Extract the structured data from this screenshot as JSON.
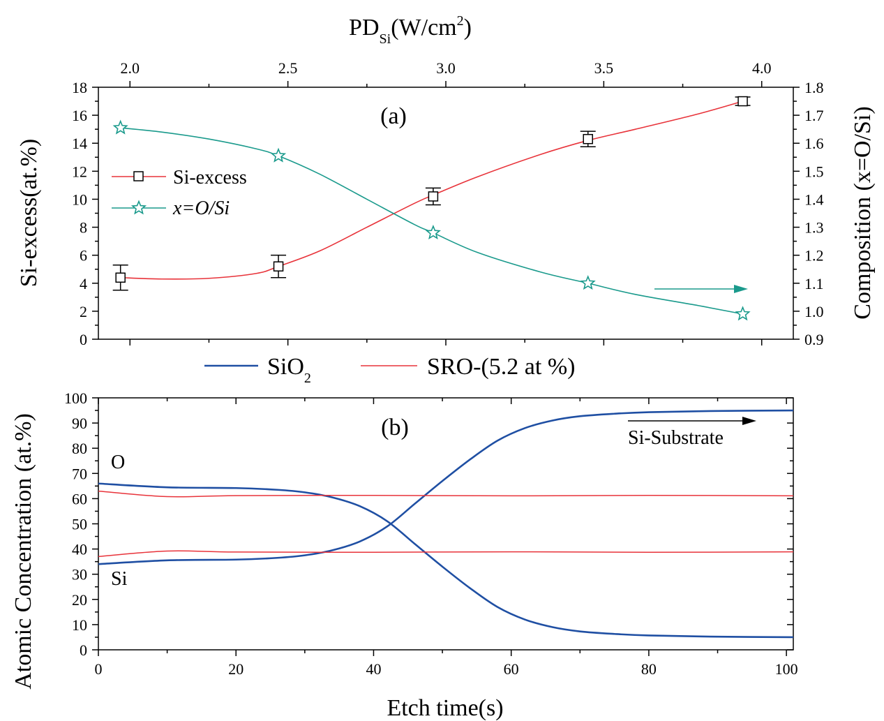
{
  "chart_data": [
    {
      "type": "scatter",
      "panel_label": "(a)",
      "x_top_label_main": "PD",
      "x_top_label_sub": "Si",
      "x_top_label_unit_pre": "(W/cm",
      "x_top_label_unit_sup": "2",
      "x_top_label_unit_post": ")",
      "x_ticks": [
        "2.0",
        "2.5",
        "3.0",
        "3.5",
        "4.0"
      ],
      "xlim": [
        1.9,
        4.1
      ],
      "y_left_label": "Si-excess(at.%)",
      "y_left_ticks": [
        "0",
        "2",
        "4",
        "6",
        "8",
        "10",
        "12",
        "14",
        "16",
        "18"
      ],
      "ylim_left": [
        0,
        18
      ],
      "y_right_label": "Composition (x=O/Si)",
      "y_right_ticks": [
        "0.9",
        "1.0",
        "1.1",
        "1.2",
        "1.3",
        "1.4",
        "1.5",
        "1.6",
        "1.7",
        "1.8"
      ],
      "ylim_right": [
        0.9,
        1.8
      ],
      "legend_position": "left",
      "series": [
        {
          "name": "Si-excess",
          "axis": "left",
          "marker": "square",
          "color": "#e8333a",
          "x": [
            1.97,
            2.47,
            2.96,
            3.45,
            3.94
          ],
          "y": [
            4.4,
            5.2,
            10.2,
            14.3,
            17.0
          ],
          "yerr": [
            0.9,
            0.8,
            0.6,
            0.55,
            0.3
          ],
          "curve_x": [
            1.97,
            2.1,
            2.25,
            2.4,
            2.47,
            2.6,
            2.75,
            2.9,
            2.96,
            3.1,
            3.3,
            3.45,
            3.6,
            3.8,
            3.94
          ],
          "curve_y": [
            4.4,
            4.3,
            4.35,
            4.7,
            5.2,
            6.3,
            8.0,
            9.7,
            10.3,
            11.6,
            13.2,
            14.2,
            15.0,
            16.1,
            17.0
          ]
        },
        {
          "name": "x=O/Si",
          "axis": "right",
          "marker": "star",
          "color": "#1a9a8c",
          "x": [
            1.97,
            2.47,
            2.96,
            3.45,
            3.94
          ],
          "y": [
            1.655,
            1.555,
            1.28,
            1.1,
            0.99
          ],
          "curve_x": [
            1.97,
            2.1,
            2.25,
            2.4,
            2.47,
            2.6,
            2.75,
            2.9,
            2.96,
            3.1,
            3.3,
            3.45,
            3.6,
            3.8,
            3.94
          ],
          "curve_y": [
            1.655,
            1.64,
            1.615,
            1.58,
            1.555,
            1.49,
            1.4,
            1.31,
            1.28,
            1.21,
            1.14,
            1.1,
            1.06,
            1.02,
            0.99
          ]
        }
      ],
      "arrow_color": "#1a9a8c"
    },
    {
      "type": "line",
      "panel_label": "(b)",
      "xlabel": "Etch time(s)",
      "x_ticks": [
        "0",
        "20",
        "40",
        "60",
        "80",
        "100"
      ],
      "xlim": [
        0,
        101
      ],
      "ylabel": "Atomic Concentration (at.%)",
      "y_ticks": [
        "0",
        "10",
        "20",
        "30",
        "40",
        "50",
        "60",
        "70",
        "80",
        "90",
        "100"
      ],
      "ylim": [
        0,
        100
      ],
      "legend_position": "top",
      "legend": [
        {
          "name_main": "SiO",
          "name_sub": "2",
          "color": "#1f4fa3"
        },
        {
          "name_main": "SRO-(5.2 at %)",
          "name_sub": "",
          "color": "#e8333a"
        }
      ],
      "series": [
        {
          "group": "SiO2",
          "element": "O",
          "color": "#1f4fa3",
          "x": [
            0,
            10,
            20,
            26,
            30,
            34,
            38,
            42,
            46,
            50,
            54,
            58,
            62,
            66,
            70,
            75,
            80,
            90,
            101
          ],
          "y": [
            66,
            64.5,
            64.2,
            63.5,
            62.5,
            60.5,
            57,
            51,
            42,
            33,
            24.5,
            17,
            12,
            9,
            7.3,
            6.3,
            5.7,
            5.2,
            5
          ]
        },
        {
          "group": "SiO2",
          "element": "Si",
          "color": "#1f4fa3",
          "x": [
            0,
            10,
            20,
            26,
            30,
            34,
            38,
            42,
            46,
            50,
            54,
            58,
            62,
            66,
            70,
            75,
            80,
            90,
            101
          ],
          "y": [
            34,
            35.5,
            35.8,
            36.5,
            37.5,
            39.5,
            43,
            49,
            58,
            67,
            75.5,
            83,
            88,
            91,
            92.7,
            93.7,
            94.3,
            94.8,
            95
          ]
        },
        {
          "group": "SRO",
          "element": "O",
          "color": "#e8333a",
          "x": [
            0,
            10,
            20,
            40,
            60,
            80,
            101
          ],
          "y": [
            63,
            60.8,
            61.2,
            61.3,
            61.1,
            61.3,
            61.1
          ]
        },
        {
          "group": "SRO",
          "element": "Si",
          "color": "#e8333a",
          "x": [
            0,
            10,
            20,
            40,
            60,
            80,
            101
          ],
          "y": [
            37,
            39.2,
            38.8,
            38.7,
            38.9,
            38.7,
            38.9
          ]
        }
      ],
      "label_O": "O",
      "label_Si": "Si",
      "annotation": "Si-Substrate"
    }
  ]
}
